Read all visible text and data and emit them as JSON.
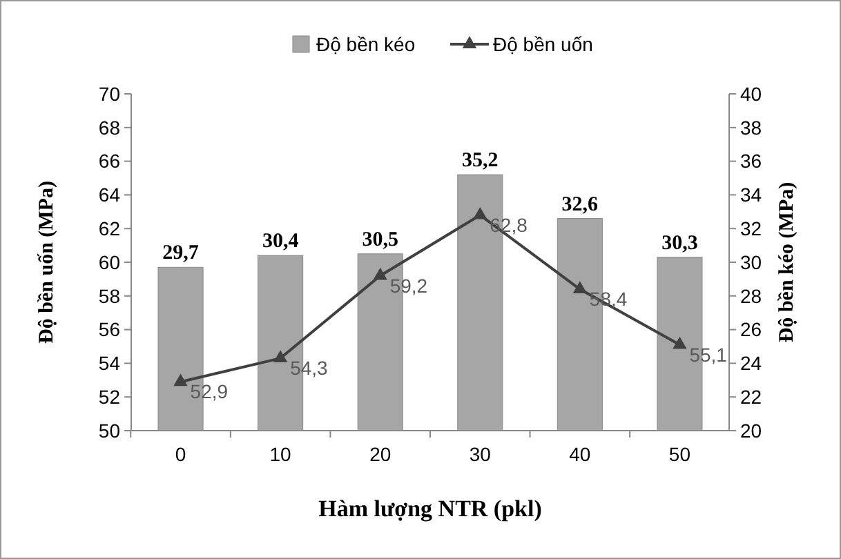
{
  "chart_data": {
    "type": "bar",
    "xlabel": "Hàm lượng NTR (pkl)",
    "ylabel": "Độ bền uốn (MPa)",
    "y2label": "Độ bền kéo (MPa)",
    "categories": [
      "0",
      "10",
      "20",
      "30",
      "40",
      "50"
    ],
    "series": [
      {
        "name": "Độ bền kéo",
        "axis": "y2",
        "color": "#a6a6a6",
        "values": [
          29.7,
          30.4,
          30.5,
          35.2,
          32.6,
          30.3
        ],
        "value_labels": [
          "29,7",
          "30,4",
          "30,5",
          "35,2",
          "32,6",
          "30,3"
        ]
      },
      {
        "name": "Độ bền uốn",
        "type": "line",
        "axis": "y",
        "color": "#404040",
        "marker": "triangle",
        "line_style": "solid",
        "values": [
          52.9,
          54.3,
          59.2,
          62.8,
          58.4,
          55.1
        ],
        "value_labels": [
          "52,9",
          "54,3",
          "59,2",
          "62,8",
          "58,4",
          "55,1"
        ]
      }
    ],
    "ylim": [
      50,
      70
    ],
    "yticks": [
      50,
      52,
      54,
      56,
      58,
      60,
      62,
      64,
      66,
      68,
      70
    ],
    "y2lim": [
      20,
      40
    ],
    "y2ticks": [
      20,
      22,
      24,
      26,
      28,
      30,
      32,
      34,
      36,
      38,
      40
    ],
    "grid": false,
    "legend": "top"
  }
}
